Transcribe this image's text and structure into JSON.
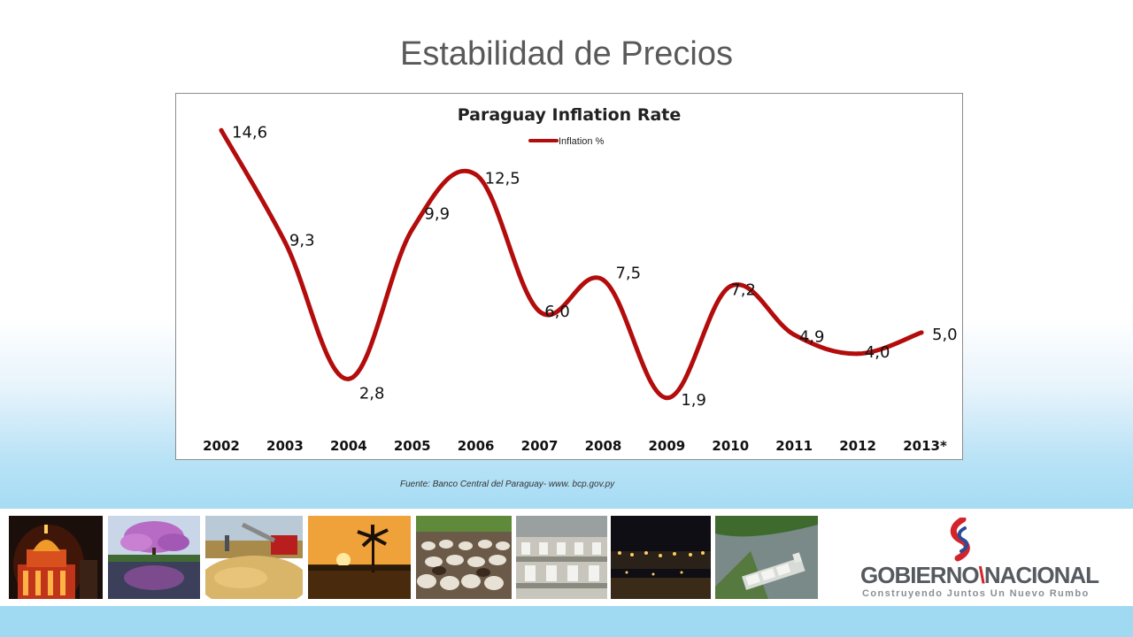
{
  "slide": {
    "title": "Estabilidad de Precios",
    "source": "Fuente: Banco Central del  Paraguay- www. bcp.gov.py"
  },
  "chart_data": {
    "type": "line",
    "title": "Paraguay Inflation Rate",
    "legend": {
      "label": "Inflation %",
      "position": "top-center"
    },
    "categories": [
      "2002",
      "2003",
      "2004",
      "2005",
      "2006",
      "2007",
      "2008",
      "2009",
      "2010",
      "2011",
      "2012",
      "2013*"
    ],
    "series": [
      {
        "name": "Inflation %",
        "values": [
          14.6,
          9.3,
          2.8,
          9.9,
          12.5,
          6.0,
          7.5,
          1.9,
          7.2,
          4.9,
          4.0,
          5.0
        ],
        "labels": [
          "14,6",
          "9,3",
          "2,8",
          "9,9",
          "12,5",
          "6,0",
          "7,5",
          "1,9",
          "7,2",
          "4,9",
          "4,0",
          "5,0"
        ],
        "color": "#b30c0c"
      }
    ],
    "ylim": [
      0,
      16
    ],
    "grid": false,
    "xlabel": "",
    "ylabel": ""
  },
  "banner": {
    "photos": [
      "palace",
      "lapacho-tree",
      "soybean-harvest",
      "palm-sunset",
      "cattle-herd",
      "factory-workers",
      "night-port",
      "river-barge"
    ],
    "logo": {
      "name_part1": "GOBIERNO",
      "name_part2": "NACIONAL",
      "tagline": "Construyendo Juntos Un Nuevo Rumbo"
    }
  },
  "colors": {
    "line": "#b30c0c",
    "title": "#595959",
    "logo_red": "#d4242b",
    "logo_blue": "#2a4d9a"
  }
}
